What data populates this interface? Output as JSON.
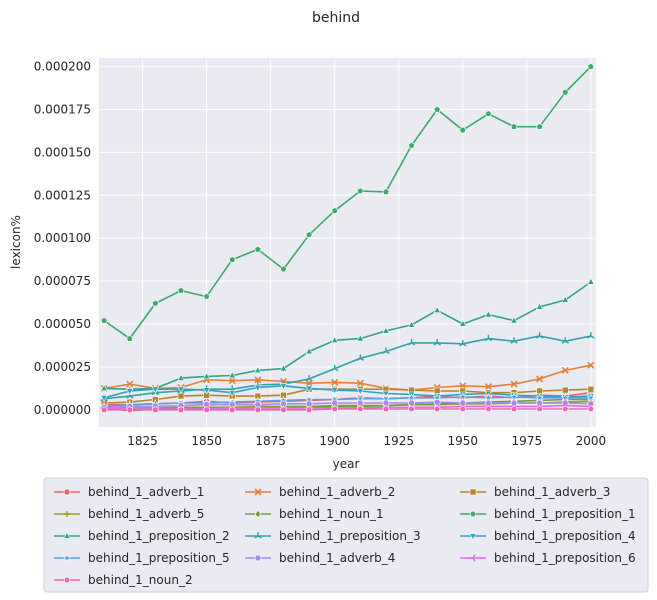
{
  "chart_data": {
    "type": "line",
    "title": "behind",
    "xlabel": "year",
    "ylabel": "lexicon%",
    "xlim": [
      1808,
      2002
    ],
    "ylim": [
      -1e-05,
      0.000205
    ],
    "xticks": [
      1825,
      1850,
      1875,
      1900,
      1925,
      1950,
      1975,
      2000
    ],
    "yticks": [
      0.0,
      2.5e-05,
      5e-05,
      7.5e-05,
      0.0001,
      0.000125,
      0.00015,
      0.000175,
      0.0002
    ],
    "ytick_labels": [
      "0.000000",
      "0.000025",
      "0.000050",
      "0.000075",
      "0.000100",
      "0.000125",
      "0.000150",
      "0.000175",
      "0.000200"
    ],
    "grid": true,
    "legend_position": "bottom",
    "x": [
      1810,
      1820,
      1830,
      1840,
      1850,
      1860,
      1870,
      1880,
      1890,
      1900,
      1910,
      1920,
      1930,
      1940,
      1950,
      1960,
      1970,
      1980,
      1990,
      2000
    ],
    "series": [
      {
        "name": "behind_1_adverb_1",
        "color": "#f0606d",
        "marker": "circle",
        "values": [
          3e-06,
          3e-06,
          3.5e-06,
          4e-06,
          5e-06,
          4e-06,
          4.5e-06,
          5e-06,
          5.5e-06,
          6e-06,
          7e-06,
          6.5e-06,
          7e-06,
          8e-06,
          7e-06,
          8e-06,
          7e-06,
          8.5e-06,
          8e-06,
          1e-05
        ]
      },
      {
        "name": "behind_1_adverb_2",
        "color": "#e7803b",
        "marker": "x",
        "values": [
          1.25e-05,
          1.5e-05,
          1.25e-05,
          1.3e-05,
          1.75e-05,
          1.7e-05,
          1.75e-05,
          1.65e-05,
          1.55e-05,
          1.6e-05,
          1.55e-05,
          1.25e-05,
          1.15e-05,
          1.3e-05,
          1.4e-05,
          1.35e-05,
          1.5e-05,
          1.8e-05,
          2.3e-05,
          2.6e-05
        ]
      },
      {
        "name": "behind_1_adverb_3",
        "color": "#b3882a",
        "marker": "square",
        "values": [
          4e-06,
          4.5e-06,
          6e-06,
          8e-06,
          8.5e-06,
          8e-06,
          8e-06,
          8.5e-06,
          1.2e-05,
          1.2e-05,
          1.2e-05,
          1.2e-05,
          1.15e-05,
          1.1e-05,
          1.1e-05,
          1e-05,
          1e-05,
          1.1e-05,
          1.15e-05,
          1.2e-05
        ]
      },
      {
        "name": "behind_1_adverb_5",
        "color": "#9c9a2a",
        "marker": "plus",
        "values": [
          1e-06,
          1e-06,
          1e-06,
          1.5e-06,
          1.5e-06,
          1.5e-06,
          2e-06,
          2e-06,
          2e-06,
          2.5e-06,
          2.5e-06,
          2.5e-06,
          3e-06,
          3e-06,
          3.5e-06,
          3.5e-06,
          4e-06,
          4e-06,
          4.5e-06,
          5e-06
        ]
      },
      {
        "name": "behind_1_noun_1",
        "color": "#73a12a",
        "marker": "diamond",
        "values": [
          1e-06,
          -5e-07,
          5e-07,
          1e-06,
          5e-07,
          1e-06,
          1e-06,
          1.5e-06,
          1.5e-06,
          2e-06,
          2e-06,
          2.5e-06,
          3e-06,
          3.5e-06,
          4e-06,
          4.5e-06,
          5e-06,
          5.5e-06,
          6e-06,
          6e-06
        ]
      },
      {
        "name": "behind_1_preposition_1",
        "color": "#3bab6a",
        "marker": "pentagon",
        "values": [
          5.2e-05,
          4.15e-05,
          6.2e-05,
          6.95e-05,
          6.6e-05,
          8.75e-05,
          9.35e-05,
          8.2e-05,
          0.000102,
          0.000116,
          0.0001275,
          0.000127,
          0.000154,
          0.000175,
          0.000163,
          0.0001725,
          0.000165,
          0.000165,
          0.000185,
          0.0002
        ]
      },
      {
        "name": "behind_1_preposition_2",
        "color": "#2ea586",
        "marker": "triangle",
        "values": [
          1.25e-05,
          1.2e-05,
          1.25e-05,
          1.85e-05,
          1.95e-05,
          2e-05,
          2.3e-05,
          2.4e-05,
          3.4e-05,
          4.05e-05,
          4.15e-05,
          4.6e-05,
          4.95e-05,
          5.8e-05,
          5e-05,
          5.55e-05,
          5.2e-05,
          6e-05,
          6.4e-05,
          7.45e-05
        ]
      },
      {
        "name": "behind_1_preposition_3",
        "color": "#2ea4a6",
        "marker": "tri",
        "values": [
          6.5e-06,
          8e-06,
          1e-05,
          1.1e-05,
          1.2e-05,
          1.2e-05,
          1.45e-05,
          1.5e-05,
          1.8e-05,
          2.4e-05,
          3e-05,
          3.4e-05,
          3.9e-05,
          3.9e-05,
          3.85e-05,
          4.15e-05,
          4e-05,
          4.3e-05,
          4e-05,
          4.3e-05
        ]
      },
      {
        "name": "behind_1_preposition_4",
        "color": "#31a2c5",
        "marker": "triangle-down",
        "values": [
          7e-06,
          1.1e-05,
          1.2e-05,
          1.2e-05,
          1.15e-05,
          1e-05,
          1.3e-05,
          1.4e-05,
          1.25e-05,
          1.15e-05,
          1.1e-05,
          9.5e-06,
          9e-06,
          8e-06,
          9e-06,
          9.5e-06,
          8.5e-06,
          8e-06,
          7.5e-06,
          8e-06
        ]
      },
      {
        "name": "behind_1_preposition_5",
        "color": "#5b9ee3",
        "marker": "star",
        "values": [
          2e-06,
          3e-06,
          3.5e-06,
          4e-06,
          4e-06,
          4.5e-06,
          5e-06,
          5.5e-06,
          6e-06,
          6e-06,
          6.5e-06,
          6.5e-06,
          7e-06,
          7e-06,
          7.5e-06,
          7e-06,
          7.5e-06,
          7e-06,
          7e-06,
          7e-06
        ]
      },
      {
        "name": "behind_1_adverb_4",
        "color": "#a58af0",
        "marker": "hexagon",
        "values": [
          1.5e-06,
          2e-06,
          2e-06,
          2.5e-06,
          3e-06,
          3e-06,
          3e-06,
          3.5e-06,
          3.5e-06,
          4e-06,
          4e-06,
          4e-06,
          4e-06,
          4.5e-06,
          4e-06,
          4e-06,
          4e-06,
          4e-06,
          4e-06,
          3.5e-06
        ]
      },
      {
        "name": "behind_1_preposition_6",
        "color": "#e06ce6",
        "marker": "tri-left",
        "values": [
          1e-06,
          5e-07,
          5e-07,
          5e-07,
          5e-07,
          1e-06,
          1e-06,
          1e-06,
          1e-06,
          1e-06,
          1e-06,
          1.5e-06,
          1.5e-06,
          1.5e-06,
          2e-06,
          2e-06,
          2e-06,
          2e-06,
          2.5e-06,
          2e-06
        ]
      },
      {
        "name": "behind_1_noun_2",
        "color": "#f265b0",
        "marker": "pentagon",
        "values": [
          0.0,
          0.0,
          0.0,
          0.0,
          0.0,
          0.0,
          0.0,
          0.0,
          0.0,
          5e-07,
          5e-07,
          5e-07,
          5e-07,
          5e-07,
          5e-07,
          5e-07,
          5e-07,
          5e-07,
          5e-07,
          5e-07
        ]
      }
    ]
  }
}
